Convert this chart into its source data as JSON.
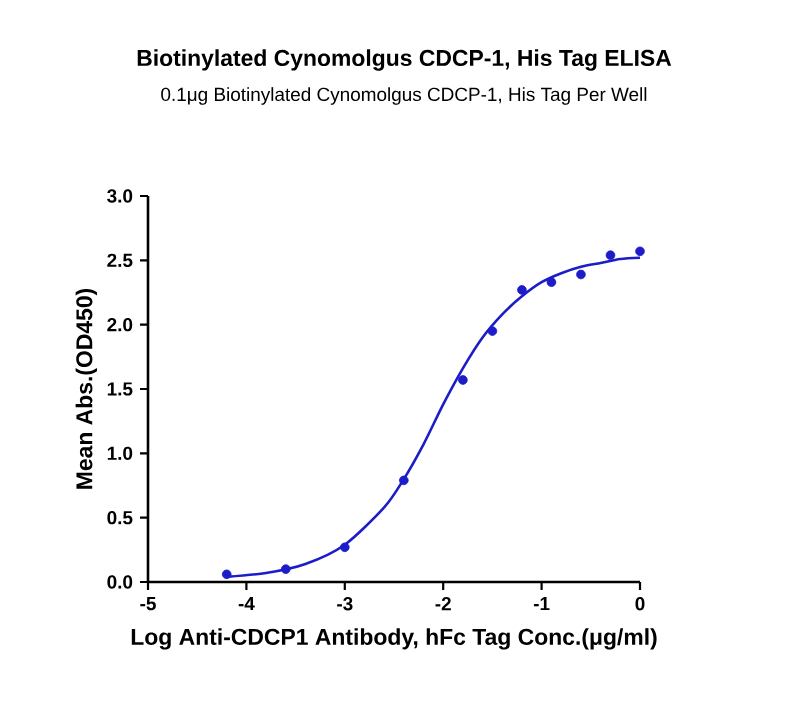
{
  "chart_data": {
    "type": "scatter",
    "title": "Biotinylated Cynomolgus CDCP-1, His Tag ELISA",
    "subtitle": "0.1μg Biotinylated Cynomolgus CDCP-1, His Tag Per Well",
    "xlabel": "Log Anti-CDCP1 Antibody, hFc Tag Conc.(μg/ml)",
    "ylabel": "Mean Abs.(OD450)",
    "x": [
      -4.2,
      -3.6,
      -3.0,
      -2.4,
      -1.8,
      -1.5,
      -1.2,
      -0.9,
      -0.6,
      -0.3,
      0
    ],
    "series": [
      {
        "color": "#1c1cc8",
        "values": [
          0.06,
          0.1,
          0.27,
          0.79,
          1.57,
          1.95,
          2.27,
          2.33,
          2.39,
          2.54,
          2.57
        ]
      },
      {
        "type": "line",
        "color": "#1c1cc8",
        "marker": "none",
        "line_style": "solid",
        "x": [
          -4.2,
          -3.8,
          -3.4,
          -3.0,
          -2.6,
          -2.4,
          -2.2,
          -2.0,
          -1.8,
          -1.6,
          -1.4,
          -1.2,
          -1.0,
          -0.8,
          -0.6,
          -0.4,
          -0.2,
          0
        ],
        "values": [
          0.04,
          0.07,
          0.14,
          0.29,
          0.58,
          0.8,
          1.07,
          1.38,
          1.66,
          1.9,
          2.08,
          2.22,
          2.33,
          2.4,
          2.45,
          2.48,
          2.51,
          2.52
        ]
      }
    ],
    "xlim": [
      -5,
      0
    ],
    "xticks": [
      -5,
      -4,
      -3,
      -2,
      -1,
      0
    ],
    "ylim": [
      0,
      3
    ],
    "yticks": [
      {
        "value": 0,
        "label": "0.0"
      },
      {
        "value": 0.5,
        "label": "0.5"
      },
      {
        "value": 1,
        "label": "1.0"
      },
      {
        "value": 1.5,
        "label": "1.5"
      },
      {
        "value": 2,
        "label": "2.0"
      },
      {
        "value": 2.5,
        "label": "2.5"
      },
      {
        "value": 3,
        "label": "3.0"
      }
    ],
    "marker": "circle"
  }
}
